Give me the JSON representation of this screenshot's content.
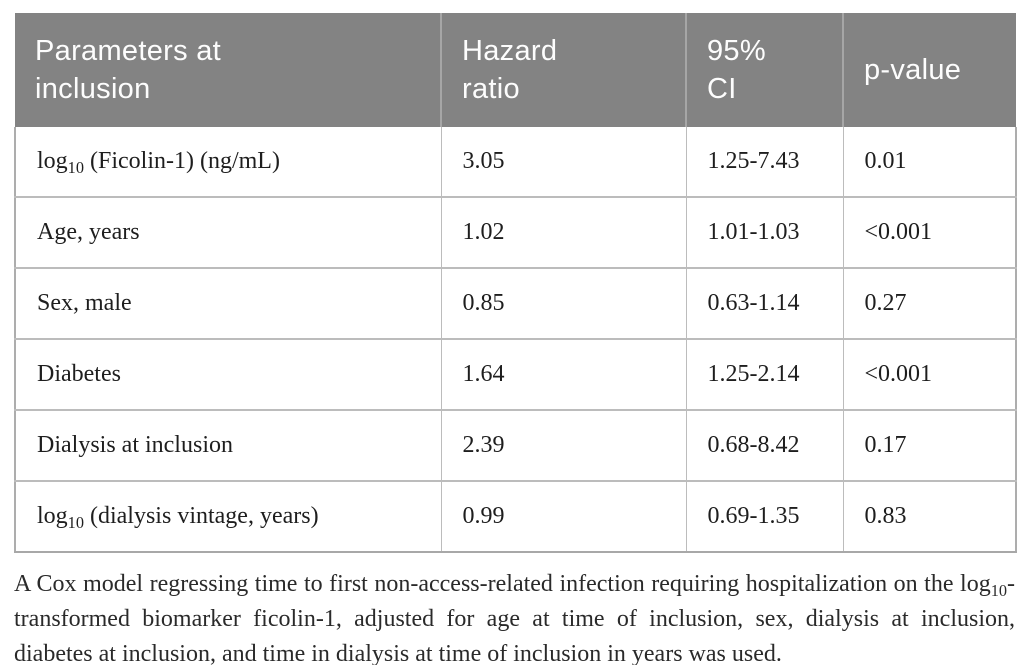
{
  "table": {
    "columns": [
      {
        "label": "Parameters at\ninclusion"
      },
      {
        "label": "Hazard\nratio"
      },
      {
        "label": "95%\nCI"
      },
      {
        "label": "p-value"
      }
    ],
    "rows": [
      {
        "param_prefix": "log",
        "param_sub": "10",
        "param_suffix": " (Ficolin-1) (ng/mL)",
        "hazard_ratio": "3.05",
        "ci_95": "1.25-7.43",
        "p_value": "0.01"
      },
      {
        "param_prefix": "Age, years",
        "param_sub": "",
        "param_suffix": "",
        "hazard_ratio": "1.02",
        "ci_95": "1.01-1.03",
        "p_value": "<0.001"
      },
      {
        "param_prefix": "Sex, male",
        "param_sub": "",
        "param_suffix": "",
        "hazard_ratio": "0.85",
        "ci_95": "0.63-1.14",
        "p_value": "0.27"
      },
      {
        "param_prefix": "Diabetes",
        "param_sub": "",
        "param_suffix": "",
        "hazard_ratio": "1.64",
        "ci_95": "1.25-2.14",
        "p_value": "<0.001"
      },
      {
        "param_prefix": "Dialysis at inclusion",
        "param_sub": "",
        "param_suffix": "",
        "hazard_ratio": "2.39",
        "ci_95": "0.68-8.42",
        "p_value": "0.17"
      },
      {
        "param_prefix": "log",
        "param_sub": "10",
        "param_suffix": " (dialysis vintage, years)",
        "hazard_ratio": "0.99",
        "ci_95": "0.69-1.35",
        "p_value": "0.83"
      }
    ]
  },
  "footnote": {
    "part1": "A Cox model regressing time to first non-access-related infection requiring hospitalization on the log",
    "sub": "10",
    "part2": "-transformed biomarker ficolin-1, adjusted for age at time of inclusion, sex, dialysis at inclusion, diabetes at inclusion, and time in dialysis at time of inclusion in years was used."
  },
  "colors": {
    "header_bg": "#838383",
    "header_text": "#fdfdfd",
    "body_text": "#1e1e1e",
    "border": "#bcbcbc"
  }
}
